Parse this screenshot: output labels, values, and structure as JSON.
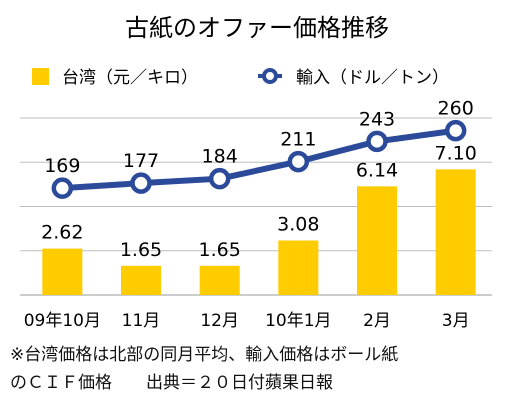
{
  "chart_data": {
    "type": "bar",
    "title": "古紙のオファー価格推移",
    "categories": [
      "09年10月",
      "11月",
      "12月",
      "10年1月",
      "2月",
      "3月"
    ],
    "series": [
      {
        "name": "台湾（元／キロ）",
        "type": "bar",
        "values": [
          2.62,
          1.65,
          1.65,
          3.08,
          6.14,
          7.1
        ],
        "labels": [
          "2.62",
          "1.65",
          "1.65",
          "3.08",
          "6.14",
          "7.10"
        ],
        "color": "#FFCC00"
      },
      {
        "name": "輸入（ドル／トン）",
        "type": "line",
        "values": [
          169,
          177,
          184,
          211,
          243,
          260
        ],
        "labels": [
          "169",
          "177",
          "184",
          "211",
          "243",
          "260"
        ],
        "color": "#2B4A9A"
      }
    ],
    "bar_axis_max": 10,
    "line_axis_range": [
      0,
      280
    ],
    "grid": true,
    "legend_position": "top"
  },
  "notes": [
    "※台湾価格は北部の同月平均、輸入価格はボール紙",
    "のＣＩＦ価格　　出典＝２０日付蘋果日報"
  ]
}
